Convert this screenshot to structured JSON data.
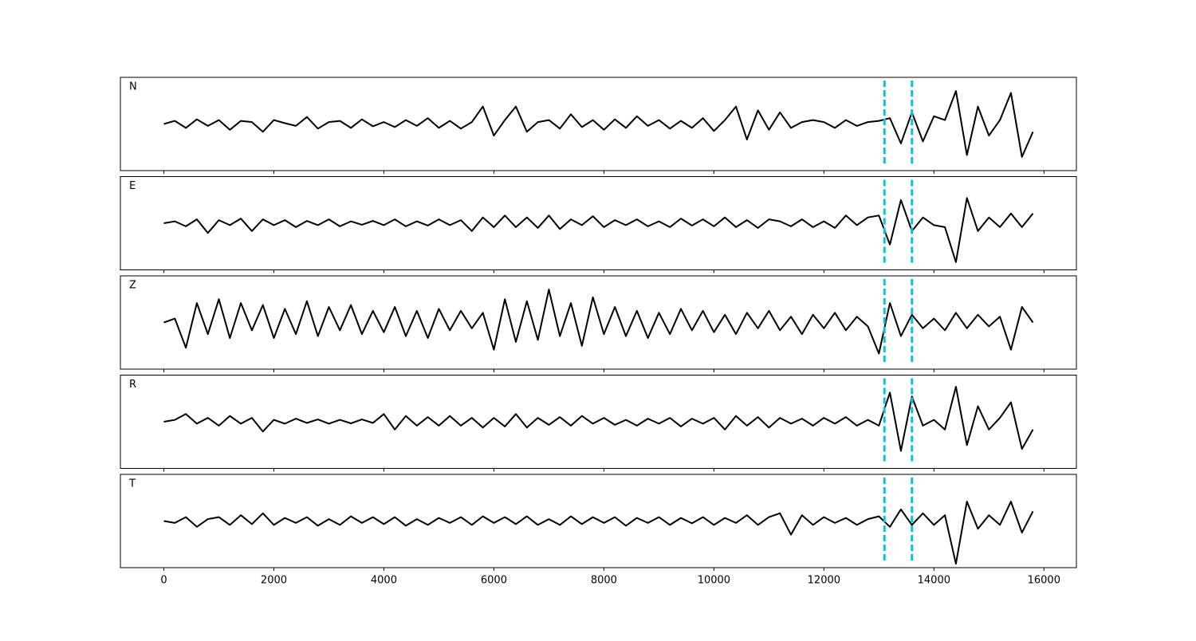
{
  "chart_data": {
    "type": "line",
    "x": [
      0,
      200,
      400,
      600,
      800,
      1000,
      1200,
      1400,
      1600,
      1800,
      2000,
      2200,
      2400,
      2600,
      2800,
      3000,
      3200,
      3400,
      3600,
      3800,
      4000,
      4200,
      4400,
      4600,
      4800,
      5000,
      5200,
      5400,
      5600,
      5800,
      6000,
      6200,
      6400,
      6600,
      6800,
      7000,
      7200,
      7400,
      7600,
      7800,
      8000,
      8200,
      8400,
      8600,
      8800,
      9000,
      9200,
      9400,
      9600,
      9800,
      10000,
      10200,
      10400,
      10600,
      10800,
      11000,
      11200,
      11400,
      11600,
      11800,
      12000,
      12200,
      12400,
      12600,
      12800,
      13000,
      13200,
      13400,
      13600,
      13800,
      14000,
      14200,
      14400,
      14600,
      14800,
      15000,
      15200,
      15400,
      15600,
      15800
    ],
    "series": [
      {
        "name": "N",
        "color": "#000000",
        "values": [
          0,
          0.08,
          -0.1,
          0.12,
          -0.05,
          0.1,
          -0.15,
          0.08,
          0.05,
          -0.2,
          0.1,
          0.02,
          -0.05,
          0.18,
          -0.12,
          0.05,
          0.08,
          -0.1,
          0.12,
          -0.06,
          0.05,
          -0.08,
          0.1,
          -0.05,
          0.15,
          -0.1,
          0.08,
          -0.12,
          0.05,
          0.45,
          -0.3,
          0.1,
          0.45,
          -0.2,
          0.05,
          0.1,
          -0.12,
          0.25,
          -0.08,
          0.1,
          -0.15,
          0.12,
          -0.1,
          0.2,
          -0.05,
          0.1,
          -0.12,
          0.08,
          -0.1,
          0.15,
          -0.18,
          0.1,
          0.45,
          -0.4,
          0.35,
          -0.15,
          0.3,
          -0.1,
          0.05,
          0.1,
          0.05,
          -0.1,
          0.1,
          -0.05,
          0.05,
          0.08,
          0.15,
          -0.5,
          0.3,
          -0.45,
          0.2,
          0.1,
          0.85,
          -0.8,
          0.45,
          -0.3,
          0.1,
          0.8,
          -0.85,
          -0.2
        ]
      },
      {
        "name": "E",
        "color": "#000000",
        "values": [
          0,
          0.05,
          -0.08,
          0.1,
          -0.25,
          0.08,
          -0.05,
          0.12,
          -0.2,
          0.1,
          -0.05,
          0.08,
          -0.1,
          0.06,
          -0.05,
          0.1,
          -0.08,
          0.05,
          -0.04,
          0.06,
          -0.05,
          0.1,
          -0.08,
          0.05,
          -0.06,
          0.1,
          -0.05,
          0.08,
          -0.2,
          0.15,
          -0.1,
          0.2,
          -0.1,
          0.15,
          -0.12,
          0.2,
          -0.15,
          0.1,
          -0.05,
          0.18,
          -0.1,
          0.08,
          -0.05,
          0.1,
          -0.08,
          0.05,
          -0.1,
          0.12,
          -0.06,
          0.1,
          -0.08,
          0.15,
          -0.1,
          0.08,
          -0.12,
          0.1,
          0.05,
          -0.08,
          0.1,
          -0.1,
          0.05,
          -0.12,
          0.2,
          -0.05,
          0.15,
          0.2,
          -0.55,
          0.6,
          -0.2,
          0.15,
          -0.05,
          -0.1,
          -1.0,
          0.65,
          -0.2,
          0.15,
          -0.1,
          0.25,
          -0.1,
          0.25
        ]
      },
      {
        "name": "Z",
        "color": "#000000",
        "values": [
          0,
          0.1,
          -0.65,
          0.5,
          -0.3,
          0.6,
          -0.4,
          0.5,
          -0.2,
          0.45,
          -0.4,
          0.35,
          -0.3,
          0.55,
          -0.35,
          0.4,
          -0.2,
          0.45,
          -0.3,
          0.3,
          -0.25,
          0.4,
          -0.35,
          0.3,
          -0.4,
          0.35,
          -0.2,
          0.3,
          -0.15,
          0.25,
          -0.7,
          0.6,
          -0.5,
          0.55,
          -0.45,
          0.85,
          -0.35,
          0.5,
          -0.6,
          0.65,
          -0.3,
          0.4,
          -0.35,
          0.3,
          -0.4,
          0.25,
          -0.3,
          0.35,
          -0.2,
          0.3,
          -0.25,
          0.2,
          -0.3,
          0.25,
          -0.15,
          0.3,
          -0.2,
          0.15,
          -0.3,
          0.2,
          -0.15,
          0.25,
          -0.2,
          0.15,
          -0.1,
          -0.8,
          0.5,
          -0.35,
          0.2,
          -0.15,
          0.1,
          -0.2,
          0.25,
          -0.15,
          0.2,
          -0.1,
          0.15,
          -0.7,
          0.4,
          0.0
        ]
      },
      {
        "name": "R",
        "color": "#000000",
        "values": [
          0,
          0.05,
          0.2,
          -0.05,
          0.1,
          -0.1,
          0.15,
          -0.05,
          0.1,
          -0.25,
          0.05,
          -0.05,
          0.08,
          -0.03,
          0.06,
          -0.05,
          0.05,
          -0.04,
          0.06,
          -0.03,
          0.2,
          -0.2,
          0.15,
          -0.1,
          0.12,
          -0.1,
          0.15,
          -0.1,
          0.1,
          -0.15,
          0.1,
          -0.12,
          0.2,
          -0.15,
          0.1,
          -0.08,
          0.12,
          -0.1,
          0.15,
          -0.05,
          0.1,
          -0.08,
          0.05,
          -0.1,
          0.08,
          -0.05,
          0.1,
          -0.12,
          0.08,
          -0.05,
          0.1,
          -0.2,
          0.15,
          -0.1,
          0.12,
          -0.15,
          0.1,
          -0.05,
          0.08,
          -0.1,
          0.1,
          -0.05,
          0.12,
          -0.1,
          0.05,
          -0.1,
          0.75,
          -0.75,
          0.65,
          -0.1,
          0.05,
          -0.2,
          0.9,
          -0.6,
          0.4,
          -0.2,
          0.1,
          0.5,
          -0.7,
          -0.2
        ]
      },
      {
        "name": "T",
        "color": "#000000",
        "values": [
          0,
          -0.05,
          0.1,
          -0.15,
          0.05,
          0.1,
          -0.1,
          0.15,
          -0.08,
          0.2,
          -0.1,
          0.08,
          -0.05,
          0.1,
          -0.12,
          0.05,
          -0.1,
          0.12,
          -0.05,
          0.1,
          -0.08,
          0.1,
          -0.12,
          0.05,
          -0.1,
          0.08,
          -0.05,
          0.1,
          -0.1,
          0.12,
          -0.05,
          0.1,
          -0.08,
          0.12,
          -0.1,
          0.05,
          -0.1,
          0.12,
          -0.08,
          0.1,
          -0.05,
          0.1,
          -0.12,
          0.08,
          -0.05,
          0.1,
          -0.1,
          0.08,
          -0.06,
          0.1,
          -0.1,
          0.08,
          -0.05,
          0.15,
          -0.1,
          0.1,
          0.2,
          -0.35,
          0.15,
          -0.1,
          0.1,
          -0.05,
          0.08,
          -0.1,
          0.05,
          0.12,
          -0.15,
          0.3,
          -0.1,
          0.2,
          -0.1,
          0.15,
          -1.1,
          0.5,
          -0.2,
          0.15,
          -0.1,
          0.5,
          -0.3,
          0.25
        ]
      }
    ],
    "xlim": [
      -790,
      16590
    ],
    "xticks": [
      0,
      2000,
      4000,
      6000,
      8000,
      10000,
      12000,
      14000,
      16000
    ],
    "ylim": [
      -1.2,
      1.2
    ],
    "vlines": [
      13100,
      13600
    ],
    "vline_color": "#17becf"
  }
}
